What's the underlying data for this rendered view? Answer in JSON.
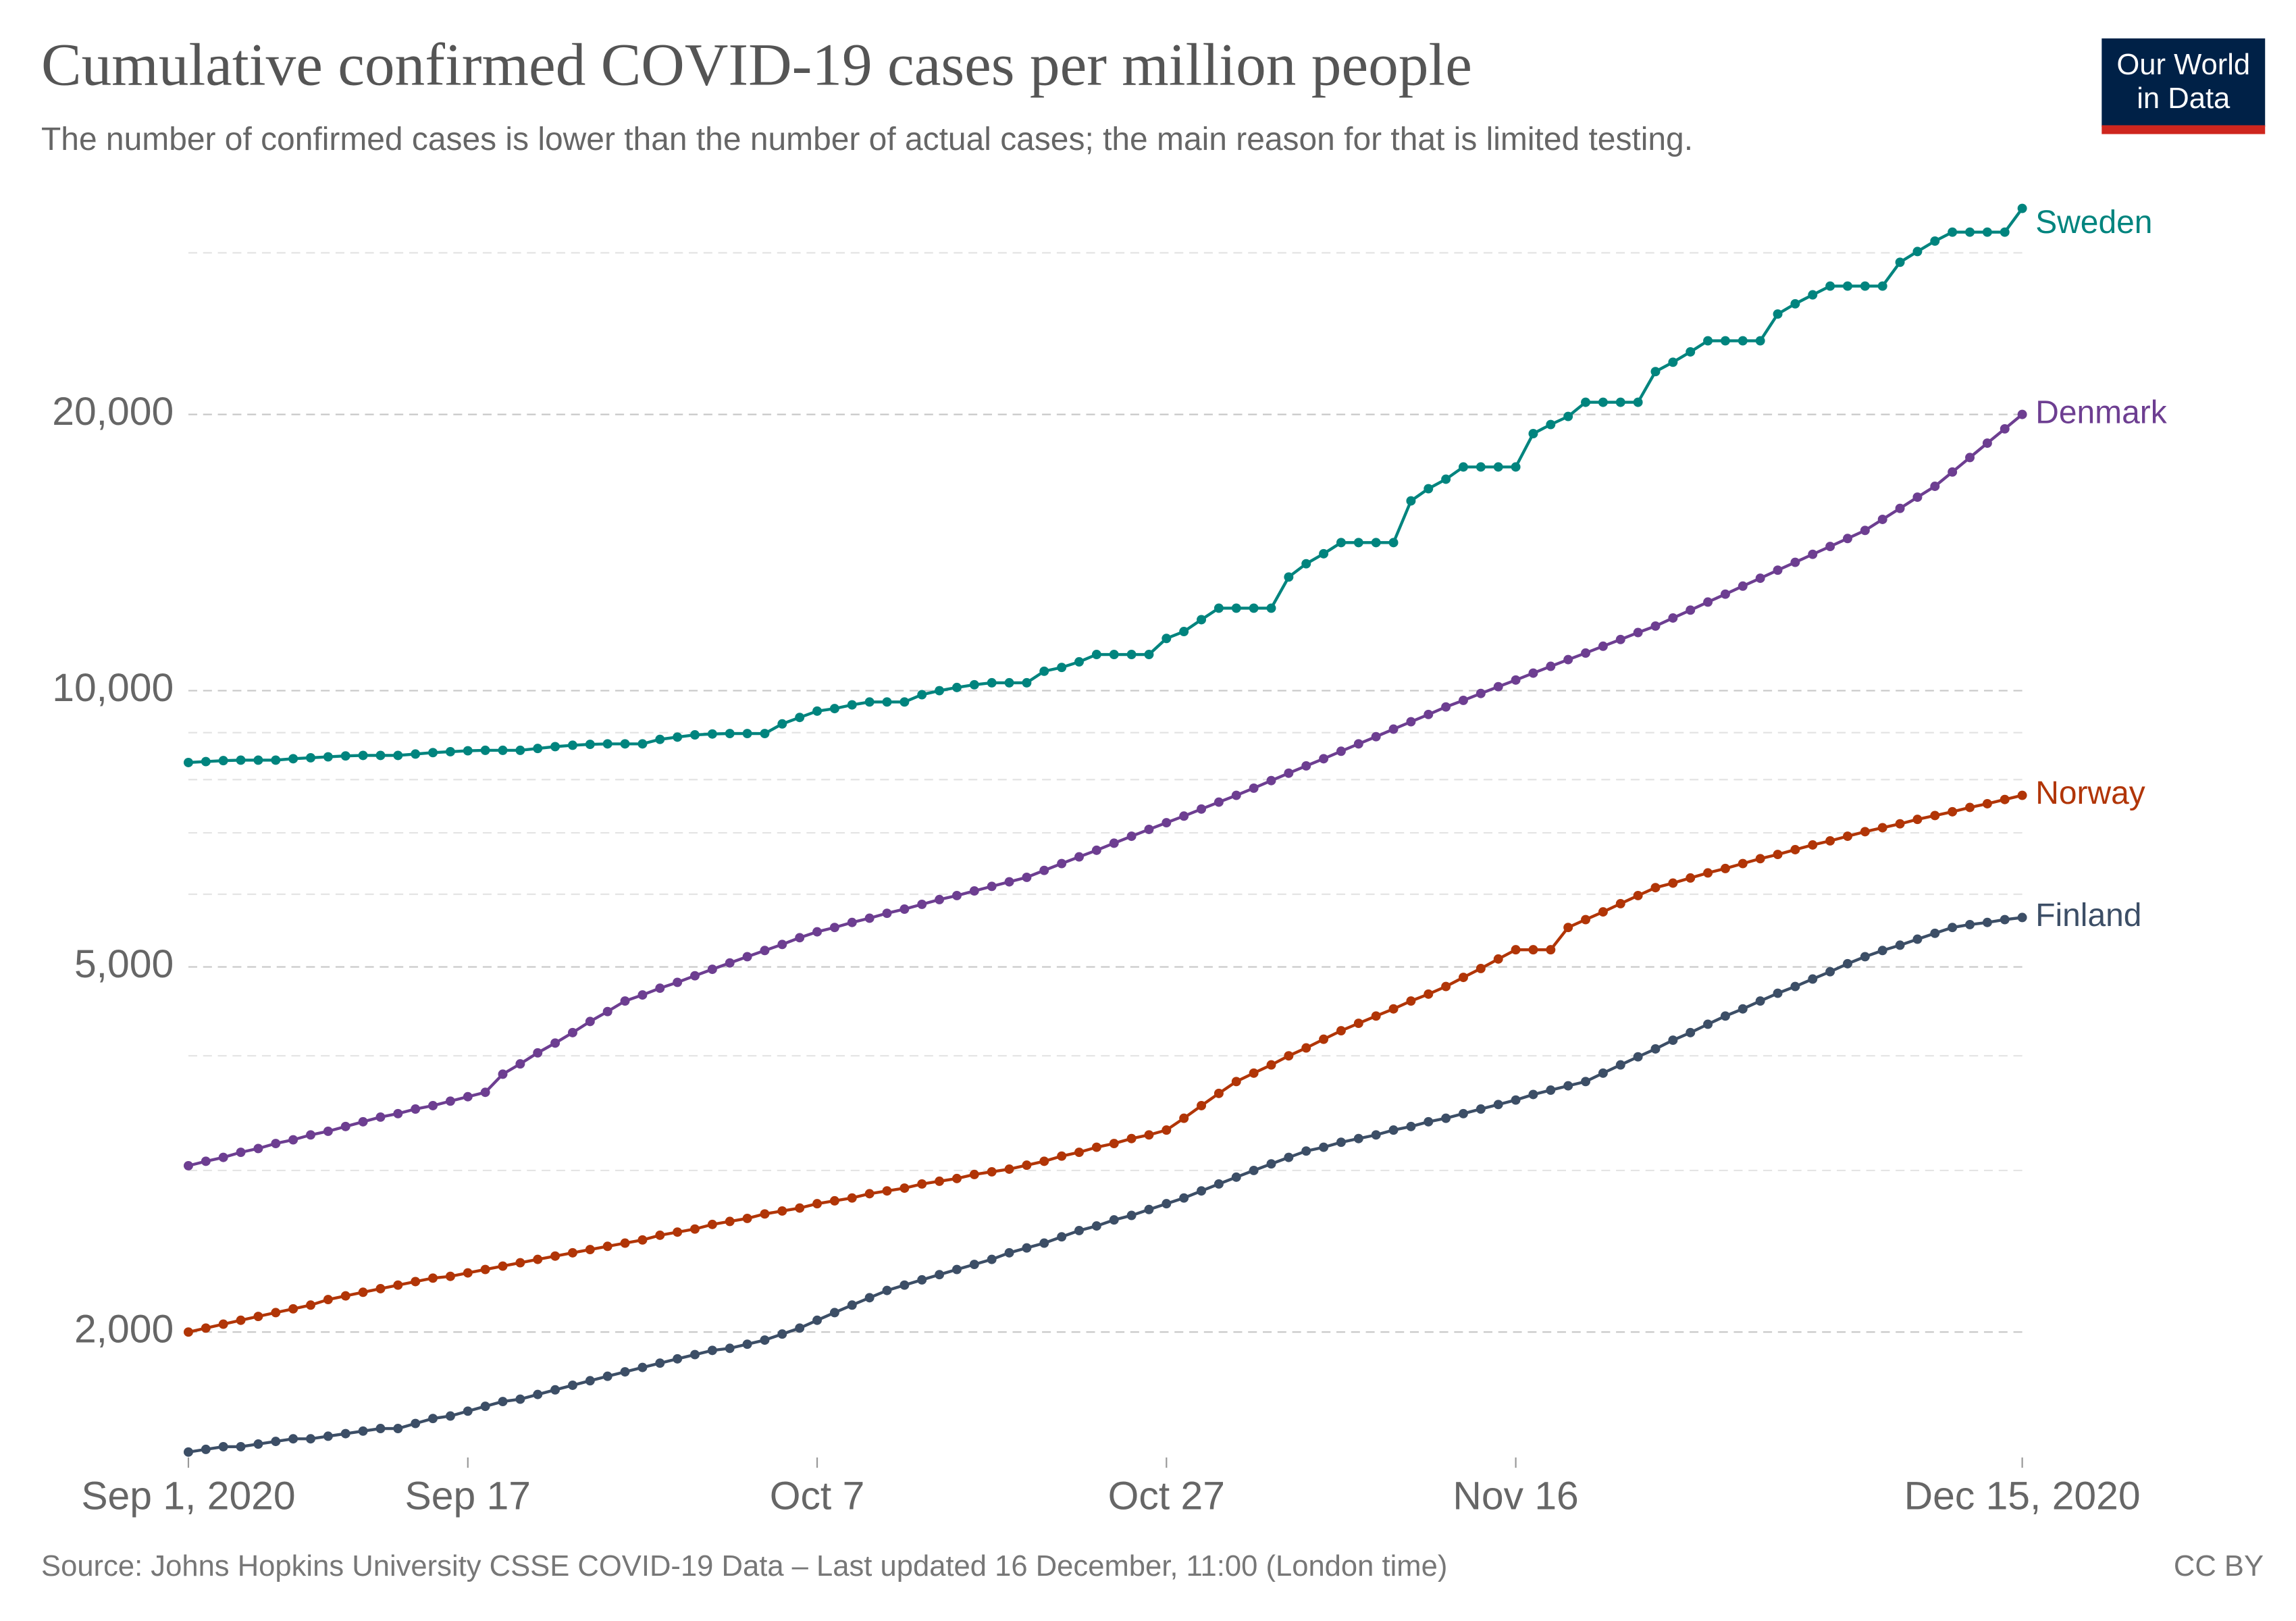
{
  "chart_data": {
    "type": "line",
    "title": "Cumulative confirmed COVID-19 cases per million people",
    "subtitle": "The number of confirmed cases is lower than the number of actual cases; the main reason for that is limited testing.",
    "source": "Source: Johns Hopkins University CSSE COVID-19 Data – Last updated 16 December, 11:00 (London time)",
    "license": "CC BY",
    "logo": [
      "Our World",
      "in Data"
    ],
    "log_scale": true,
    "grid": true,
    "x": [
      "2020-09-01",
      "2020-09-02",
      "2020-09-03",
      "2020-09-04",
      "2020-09-05",
      "2020-09-06",
      "2020-09-07",
      "2020-09-08",
      "2020-09-09",
      "2020-09-10",
      "2020-09-11",
      "2020-09-12",
      "2020-09-13",
      "2020-09-14",
      "2020-09-15",
      "2020-09-16",
      "2020-09-17",
      "2020-09-18",
      "2020-09-19",
      "2020-09-20",
      "2020-09-21",
      "2020-09-22",
      "2020-09-23",
      "2020-09-24",
      "2020-09-25",
      "2020-09-26",
      "2020-09-27",
      "2020-09-28",
      "2020-09-29",
      "2020-09-30",
      "2020-10-01",
      "2020-10-02",
      "2020-10-03",
      "2020-10-04",
      "2020-10-05",
      "2020-10-06",
      "2020-10-07",
      "2020-10-08",
      "2020-10-09",
      "2020-10-10",
      "2020-10-11",
      "2020-10-12",
      "2020-10-13",
      "2020-10-14",
      "2020-10-15",
      "2020-10-16",
      "2020-10-17",
      "2020-10-18",
      "2020-10-19",
      "2020-10-20",
      "2020-10-21",
      "2020-10-22",
      "2020-10-23",
      "2020-10-24",
      "2020-10-25",
      "2020-10-26",
      "2020-10-27",
      "2020-10-28",
      "2020-10-29",
      "2020-10-30",
      "2020-10-31",
      "2020-11-01",
      "2020-11-02",
      "2020-11-03",
      "2020-11-04",
      "2020-11-05",
      "2020-11-06",
      "2020-11-07",
      "2020-11-08",
      "2020-11-09",
      "2020-11-10",
      "2020-11-11",
      "2020-11-12",
      "2020-11-13",
      "2020-11-14",
      "2020-11-15",
      "2020-11-16",
      "2020-11-17",
      "2020-11-18",
      "2020-11-19",
      "2020-11-20",
      "2020-11-21",
      "2020-11-22",
      "2020-11-23",
      "2020-11-24",
      "2020-11-25",
      "2020-11-26",
      "2020-11-27",
      "2020-11-28",
      "2020-11-29",
      "2020-11-30",
      "2020-12-01",
      "2020-12-02",
      "2020-12-03",
      "2020-12-04",
      "2020-12-05",
      "2020-12-06",
      "2020-12-07",
      "2020-12-08",
      "2020-12-09",
      "2020-12-10",
      "2020-12-11",
      "2020-12-12",
      "2020-12-13",
      "2020-12-14",
      "2020-12-15"
    ],
    "xlim": [
      "2020-09-01",
      "2020-12-15"
    ],
    "xticks": [
      {
        "value": "2020-09-01",
        "label": "Sep 1, 2020"
      },
      {
        "value": "2020-09-17",
        "label": "Sep 17"
      },
      {
        "value": "2020-10-07",
        "label": "Oct 7"
      },
      {
        "value": "2020-10-27",
        "label": "Oct 27"
      },
      {
        "value": "2020-11-16",
        "label": "Nov 16"
      },
      {
        "value": "2020-12-15",
        "label": "Dec 15, 2020"
      }
    ],
    "ylim": [
      1460,
      33600
    ],
    "yticks": [
      {
        "value": 2000,
        "label": "2,000"
      },
      {
        "value": 5000,
        "label": "5,000"
      },
      {
        "value": 10000,
        "label": "10,000"
      },
      {
        "value": 20000,
        "label": "20,000"
      }
    ],
    "minor_gridlines": [
      3000,
      4000,
      6000,
      7000,
      8000,
      9000,
      30000
    ],
    "series": [
      {
        "name": "Sweden",
        "color": "#00847e",
        "values": [
          8350,
          8370,
          8390,
          8400,
          8400,
          8400,
          8430,
          8450,
          8470,
          8490,
          8500,
          8500,
          8500,
          8530,
          8560,
          8580,
          8600,
          8610,
          8610,
          8610,
          8650,
          8690,
          8720,
          8740,
          8750,
          8750,
          8750,
          8850,
          8900,
          8950,
          8970,
          8980,
          8980,
          8980,
          9200,
          9350,
          9500,
          9560,
          9650,
          9720,
          9720,
          9720,
          9900,
          10000,
          10080,
          10150,
          10200,
          10200,
          10200,
          10500,
          10600,
          10750,
          10950,
          10950,
          10950,
          10950,
          11400,
          11600,
          11950,
          12300,
          12300,
          12300,
          12300,
          13300,
          13750,
          14100,
          14500,
          14500,
          14500,
          14500,
          16100,
          16600,
          17000,
          17530,
          17530,
          17530,
          17530,
          19060,
          19500,
          19900,
          20620,
          20620,
          20620,
          20620,
          22270,
          22800,
          23400,
          24060,
          24060,
          24060,
          24060,
          25730,
          26400,
          27000,
          27600,
          27600,
          27600,
          27600,
          29300,
          30100,
          30900,
          31600,
          31600,
          31600,
          31600,
          33540
        ]
      },
      {
        "name": "Denmark",
        "color": "#6d3e91",
        "values": [
          3036,
          3070,
          3100,
          3140,
          3170,
          3210,
          3240,
          3280,
          3310,
          3350,
          3390,
          3430,
          3460,
          3500,
          3530,
          3570,
          3610,
          3650,
          3820,
          3920,
          4030,
          4130,
          4240,
          4360,
          4470,
          4590,
          4660,
          4740,
          4810,
          4890,
          4970,
          5050,
          5130,
          5210,
          5290,
          5380,
          5460,
          5520,
          5590,
          5650,
          5720,
          5780,
          5850,
          5920,
          5980,
          6050,
          6120,
          6190,
          6260,
          6370,
          6480,
          6590,
          6700,
          6820,
          6940,
          7060,
          7180,
          7300,
          7430,
          7560,
          7690,
          7830,
          7980,
          8130,
          8280,
          8430,
          8590,
          8750,
          8910,
          9080,
          9250,
          9420,
          9600,
          9760,
          9930,
          10100,
          10270,
          10450,
          10630,
          10810,
          10990,
          11180,
          11370,
          11570,
          11760,
          12000,
          12240,
          12490,
          12740,
          13000,
          13260,
          13530,
          13800,
          14080,
          14360,
          14650,
          14950,
          15370,
          15800,
          16250,
          16700,
          17310,
          17950,
          18610,
          19290,
          20000
        ]
      },
      {
        "name": "Norway",
        "color": "#b13507",
        "values": [
          2000,
          2020,
          2040,
          2060,
          2080,
          2100,
          2120,
          2140,
          2170,
          2190,
          2210,
          2230,
          2250,
          2270,
          2290,
          2300,
          2320,
          2340,
          2360,
          2380,
          2400,
          2420,
          2440,
          2460,
          2480,
          2500,
          2520,
          2550,
          2570,
          2590,
          2620,
          2640,
          2660,
          2690,
          2710,
          2730,
          2760,
          2780,
          2800,
          2830,
          2850,
          2870,
          2900,
          2920,
          2940,
          2970,
          2990,
          3010,
          3040,
          3070,
          3110,
          3140,
          3180,
          3210,
          3250,
          3280,
          3320,
          3420,
          3530,
          3640,
          3750,
          3830,
          3910,
          4000,
          4080,
          4170,
          4260,
          4340,
          4420,
          4500,
          4590,
          4670,
          4760,
          4870,
          4980,
          5100,
          5220,
          5220,
          5220,
          5520,
          5630,
          5740,
          5860,
          5980,
          6100,
          6170,
          6250,
          6330,
          6400,
          6480,
          6560,
          6630,
          6710,
          6790,
          6860,
          6940,
          7020,
          7090,
          7160,
          7240,
          7310,
          7380,
          7460,
          7530,
          7610,
          7690
        ]
      },
      {
        "name": "Finland",
        "color": "#3c4e66",
        "values": [
          1480,
          1490,
          1500,
          1500,
          1510,
          1520,
          1530,
          1530,
          1540,
          1550,
          1560,
          1570,
          1570,
          1590,
          1610,
          1620,
          1640,
          1660,
          1680,
          1690,
          1710,
          1730,
          1750,
          1770,
          1790,
          1810,
          1830,
          1850,
          1870,
          1890,
          1910,
          1920,
          1940,
          1960,
          1990,
          2020,
          2060,
          2100,
          2140,
          2180,
          2220,
          2250,
          2280,
          2310,
          2340,
          2370,
          2400,
          2440,
          2470,
          2500,
          2540,
          2580,
          2610,
          2650,
          2680,
          2720,
          2760,
          2800,
          2850,
          2900,
          2950,
          3000,
          3050,
          3100,
          3150,
          3180,
          3220,
          3250,
          3280,
          3320,
          3350,
          3390,
          3420,
          3460,
          3500,
          3540,
          3580,
          3630,
          3670,
          3710,
          3750,
          3830,
          3910,
          3990,
          4070,
          4160,
          4240,
          4330,
          4420,
          4500,
          4590,
          4680,
          4760,
          4850,
          4940,
          5040,
          5130,
          5210,
          5280,
          5360,
          5440,
          5520,
          5560,
          5590,
          5630,
          5660
        ]
      }
    ]
  }
}
